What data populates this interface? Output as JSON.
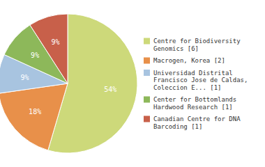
{
  "chart_data": {
    "type": "pie",
    "categories": [
      "Centre for Biodiversity\nGenomics [6]",
      "Macrogen, Korea [2]",
      "Universidad Distrital\nFrancisco Jose de Caldas,\nColeccion E... [1]",
      "Center for Bottomlands\nHardwood Research [1]",
      "Canadian Centre for DNA\nBarcoding [1]"
    ],
    "values": [
      54,
      18,
      9,
      9,
      9
    ],
    "value_labels": [
      "54%",
      "18%",
      "9%",
      "9%",
      "9%"
    ],
    "colors": [
      "#cdd97a",
      "#e8904a",
      "#a8c4e0",
      "#8db85a",
      "#c8604a"
    ],
    "data_labels": true,
    "legend": "right"
  }
}
